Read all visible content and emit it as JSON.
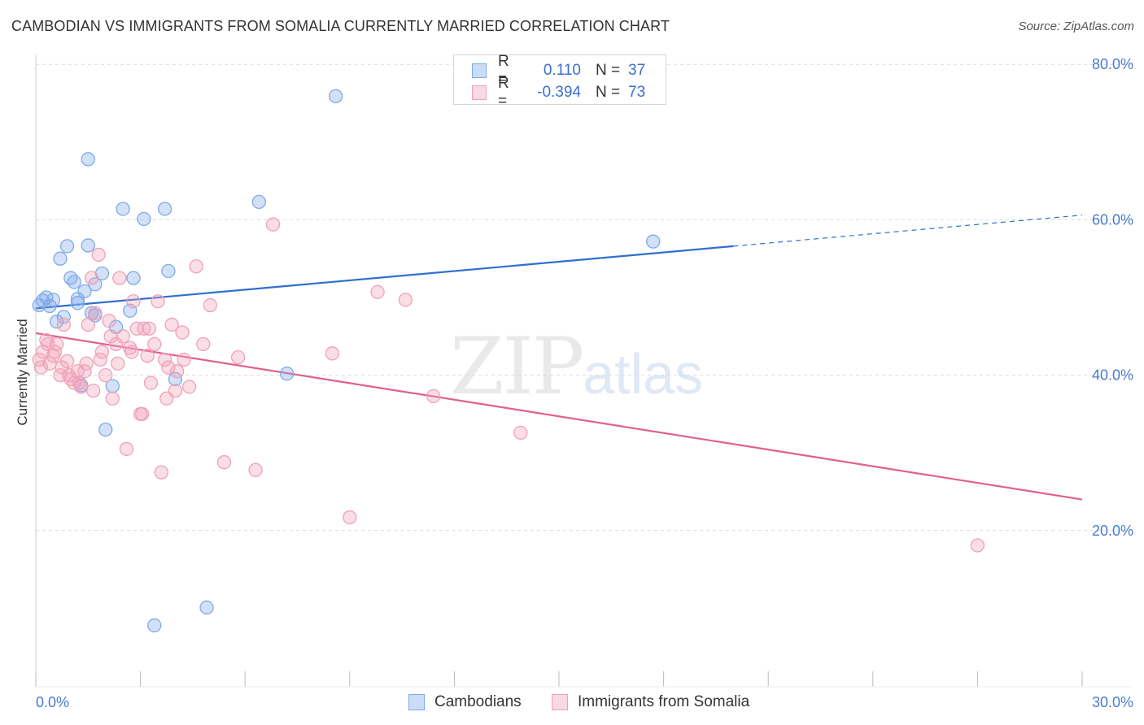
{
  "header": {
    "title": "CAMBODIAN VS IMMIGRANTS FROM SOMALIA CURRENTLY MARRIED CORRELATION CHART",
    "source": "Source: ZipAtlas.com"
  },
  "watermark": {
    "zip": "ZIP",
    "atlas": "atlas"
  },
  "stats_legend": {
    "rows": [
      {
        "r_label": "R =",
        "r_value": "0.110",
        "n_label": "N =",
        "n_value": "37",
        "color": "#7eaae8"
      },
      {
        "r_label": "R =",
        "r_value": "-0.394",
        "n_label": "N =",
        "n_value": "73",
        "color": "#f0a0b8"
      }
    ]
  },
  "chart_data": {
    "type": "scatter",
    "xlabel": "",
    "ylabel": "Currently Married",
    "xlim": [
      0,
      30
    ],
    "ylim": [
      0,
      80
    ],
    "x_tick_labels": [
      "0.0%",
      "30.0%"
    ],
    "y_ticks": [
      20,
      40,
      60,
      80
    ],
    "y_tick_labels": [
      "20.0%",
      "40.0%",
      "60.0%",
      "80.0%"
    ],
    "grid": true,
    "legend_position": "bottom-center",
    "series": [
      {
        "name": "Cambodians",
        "color": "#7eaae8",
        "line_color": "#2f6fcf",
        "trend": {
          "x0": 0,
          "y0": 48.6,
          "x1": 20.0,
          "y1": 56.6,
          "dash_to_x": 30.0,
          "dash_to_y": 60.6
        },
        "points": [
          [
            0.2,
            49.6
          ],
          [
            0.4,
            48.9
          ],
          [
            0.5,
            49.7
          ],
          [
            0.6,
            46.9
          ],
          [
            0.7,
            55.0
          ],
          [
            0.9,
            56.6
          ],
          [
            1.0,
            52.5
          ],
          [
            1.1,
            52.0
          ],
          [
            1.2,
            49.3
          ],
          [
            1.3,
            38.7
          ],
          [
            1.4,
            50.8
          ],
          [
            1.5,
            67.8
          ],
          [
            1.5,
            56.7
          ],
          [
            1.7,
            47.7
          ],
          [
            1.7,
            51.7
          ],
          [
            1.9,
            53.1
          ],
          [
            2.0,
            33.0
          ],
          [
            2.2,
            38.6
          ],
          [
            2.3,
            46.2
          ],
          [
            2.5,
            61.4
          ],
          [
            2.7,
            48.3
          ],
          [
            2.8,
            52.5
          ],
          [
            3.1,
            60.1
          ],
          [
            3.4,
            7.8
          ],
          [
            3.7,
            61.4
          ],
          [
            3.8,
            53.4
          ],
          [
            4.0,
            39.5
          ],
          [
            4.9,
            10.1
          ],
          [
            6.4,
            62.3
          ],
          [
            7.2,
            40.2
          ],
          [
            8.6,
            75.9
          ],
          [
            17.7,
            57.2
          ],
          [
            0.1,
            49.0
          ],
          [
            0.3,
            50.0
          ],
          [
            0.8,
            47.5
          ],
          [
            1.2,
            49.8
          ],
          [
            1.6,
            48.0
          ]
        ]
      },
      {
        "name": "Immigrants from Somalia",
        "color": "#f0a0b8",
        "line_color": "#e0608e",
        "trend": {
          "x0": 0,
          "y0": 45.4,
          "x1": 30.0,
          "y1": 24.0
        },
        "points": [
          [
            0.1,
            42.0
          ],
          [
            0.2,
            43.0
          ],
          [
            0.3,
            44.5
          ],
          [
            0.4,
            41.5
          ],
          [
            0.5,
            42.5
          ],
          [
            0.6,
            44.0
          ],
          [
            0.7,
            40.0
          ],
          [
            0.8,
            46.5
          ],
          [
            0.9,
            41.8
          ],
          [
            1.0,
            39.5
          ],
          [
            1.1,
            39.0
          ],
          [
            1.2,
            40.5
          ],
          [
            1.3,
            38.5
          ],
          [
            1.4,
            40.5
          ],
          [
            1.5,
            46.5
          ],
          [
            1.6,
            52.5
          ],
          [
            1.7,
            48.0
          ],
          [
            1.8,
            55.5
          ],
          [
            1.9,
            43.0
          ],
          [
            2.0,
            40.0
          ],
          [
            2.1,
            47.0
          ],
          [
            2.2,
            37.0
          ],
          [
            2.3,
            44.0
          ],
          [
            2.4,
            52.5
          ],
          [
            2.5,
            45.0
          ],
          [
            2.6,
            30.5
          ],
          [
            2.7,
            43.5
          ],
          [
            2.8,
            49.5
          ],
          [
            2.9,
            46.0
          ],
          [
            3.0,
            35.0
          ],
          [
            3.1,
            46.0
          ],
          [
            3.2,
            42.5
          ],
          [
            3.3,
            39.0
          ],
          [
            3.4,
            44.0
          ],
          [
            3.5,
            49.5
          ],
          [
            3.6,
            27.5
          ],
          [
            3.7,
            42.0
          ],
          [
            3.8,
            41.0
          ],
          [
            3.9,
            46.5
          ],
          [
            4.0,
            38.0
          ],
          [
            4.2,
            45.5
          ],
          [
            4.4,
            38.5
          ],
          [
            4.6,
            54.0
          ],
          [
            4.8,
            44.0
          ],
          [
            5.0,
            49.0
          ],
          [
            5.4,
            28.8
          ],
          [
            5.8,
            42.3
          ],
          [
            6.3,
            27.8
          ],
          [
            6.8,
            59.4
          ],
          [
            8.5,
            42.8
          ],
          [
            9.0,
            21.7
          ],
          [
            9.8,
            50.7
          ],
          [
            10.6,
            49.7
          ],
          [
            11.4,
            37.3
          ],
          [
            13.9,
            32.6
          ],
          [
            27.0,
            18.1
          ],
          [
            0.15,
            41.0
          ],
          [
            0.35,
            44.0
          ],
          [
            0.55,
            43.0
          ],
          [
            0.75,
            41.0
          ],
          [
            0.95,
            40.0
          ],
          [
            1.25,
            39.0
          ],
          [
            1.45,
            41.5
          ],
          [
            1.65,
            38.0
          ],
          [
            1.85,
            42.0
          ],
          [
            2.15,
            45.0
          ],
          [
            2.35,
            41.5
          ],
          [
            2.75,
            43.0
          ],
          [
            3.05,
            35.0
          ],
          [
            3.25,
            46.0
          ],
          [
            3.75,
            37.0
          ],
          [
            4.05,
            40.5
          ],
          [
            4.25,
            42.0
          ]
        ]
      }
    ]
  }
}
